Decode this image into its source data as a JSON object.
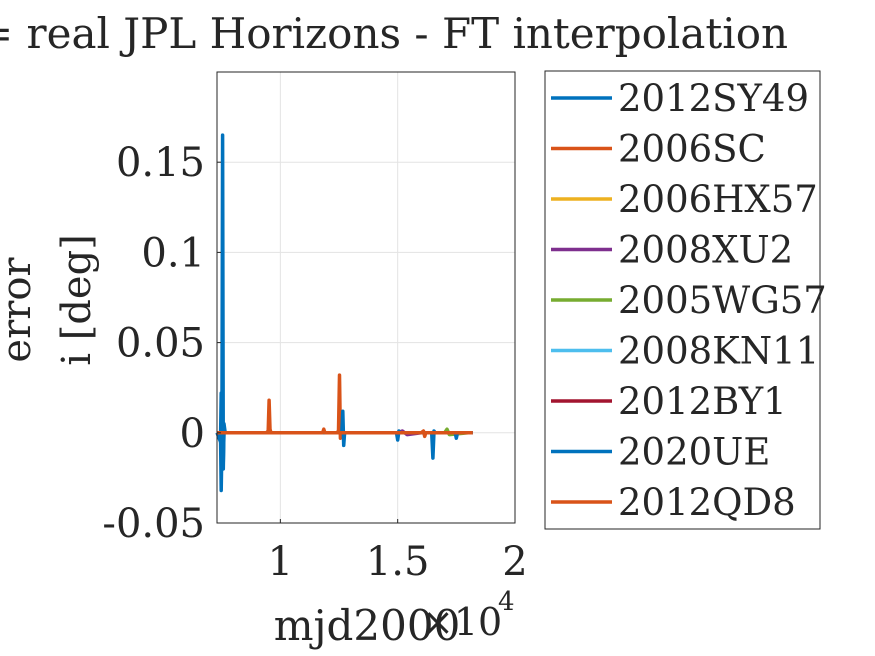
{
  "chart_data": {
    "type": "line",
    "title": "= real JPL Horizons - FT interpolation",
    "xlabel": "mjd2000",
    "ylabel_lines": [
      "error",
      "i [deg]"
    ],
    "x_exponent_label": "×10",
    "x_exponent_power": "4",
    "xlim": [
      0.73,
      2.0
    ],
    "ylim": [
      -0.05,
      0.2
    ],
    "xticks": [
      1,
      1.5,
      2
    ],
    "xtick_labels": [
      "1",
      "1.5",
      "2"
    ],
    "yticks": [
      -0.05,
      0,
      0.05,
      0.1,
      0.15
    ],
    "ytick_labels": [
      "-0.05",
      "0",
      "0.05",
      "0.1",
      "0.15"
    ],
    "grid": true,
    "legend_position": "outside-right",
    "series": [
      {
        "name": "2012SY49",
        "color": "#0072BD",
        "x": [
          0.73,
          0.745,
          0.748,
          0.751,
          0.754,
          0.757,
          0.76,
          0.765,
          0.8,
          0.9,
          1.0,
          1.2,
          1.4,
          1.6,
          1.7,
          1.8,
          1.82
        ],
        "y": [
          0,
          -0.005,
          0.022,
          -0.003,
          0.165,
          -0.02,
          0.005,
          0,
          0,
          0,
          0,
          0,
          0,
          0,
          0,
          0,
          0
        ]
      },
      {
        "name": "2006SC",
        "color": "#D95319",
        "x": [
          0.73,
          0.94,
          0.948,
          0.952,
          0.956,
          0.96,
          1.1,
          1.24,
          1.248,
          1.252,
          1.256,
          1.26,
          1.4,
          1.6,
          1.8,
          1.82
        ],
        "y": [
          0,
          0,
          0.001,
          0.018,
          0.002,
          0,
          0,
          0,
          0.001,
          0.032,
          -0.003,
          0,
          0,
          0,
          0,
          0
        ]
      },
      {
        "name": "2006HX57",
        "color": "#EDB120",
        "x": [
          0.75,
          1.0,
          1.3,
          1.6,
          1.8
        ],
        "y": [
          0,
          0,
          0,
          0,
          0
        ]
      },
      {
        "name": "2008XU2",
        "color": "#7E2F8E",
        "x": [
          0.75,
          1.0,
          1.3,
          1.5,
          1.52,
          1.54,
          1.6,
          1.8
        ],
        "y": [
          0,
          0,
          0,
          0,
          0.001,
          -0.001,
          0,
          0
        ]
      },
      {
        "name": "2005WG57",
        "color": "#77AC30",
        "x": [
          0.75,
          1.0,
          1.3,
          1.7,
          1.71,
          1.72,
          1.8
        ],
        "y": [
          0,
          0,
          0,
          0,
          0.002,
          -0.001,
          0
        ]
      },
      {
        "name": "2008KN11",
        "color": "#4DBEEE",
        "x": [
          0.75,
          1.0,
          1.3,
          1.6,
          1.8
        ],
        "y": [
          0,
          0,
          0,
          0,
          0
        ]
      },
      {
        "name": "2012BY1",
        "color": "#A2142F",
        "x": [
          0.75,
          1.0,
          1.3,
          1.6,
          1.8
        ],
        "y": [
          0,
          0,
          0,
          0,
          0
        ]
      },
      {
        "name": "2020UE",
        "color": "#0072BD",
        "x": [
          0.73,
          0.745,
          0.748,
          0.752,
          0.756,
          0.76,
          1.2,
          1.262,
          1.266,
          1.27,
          1.274,
          1.49,
          1.495,
          1.5,
          1.505,
          1.51,
          1.64,
          1.645,
          1.65,
          1.655,
          1.66,
          1.74,
          1.745,
          1.75,
          1.755,
          1.82
        ],
        "y": [
          0,
          0,
          -0.032,
          0.003,
          -0.02,
          0,
          0,
          0,
          0.012,
          -0.007,
          0,
          0,
          0,
          -0.004,
          0.001,
          0,
          0,
          0,
          -0.014,
          0.001,
          0,
          0,
          0,
          -0.003,
          0,
          0
        ]
      },
      {
        "name": "2012QD8",
        "color": "#D95319",
        "x": [
          0.73,
          1.0,
          1.18,
          1.185,
          1.19,
          1.3,
          1.5,
          1.6,
          1.61,
          1.615,
          1.62,
          1.8,
          1.82
        ],
        "y": [
          0,
          0,
          0,
          0.002,
          0,
          0,
          0,
          0,
          0.001,
          -0.002,
          0,
          0,
          0
        ]
      }
    ]
  }
}
